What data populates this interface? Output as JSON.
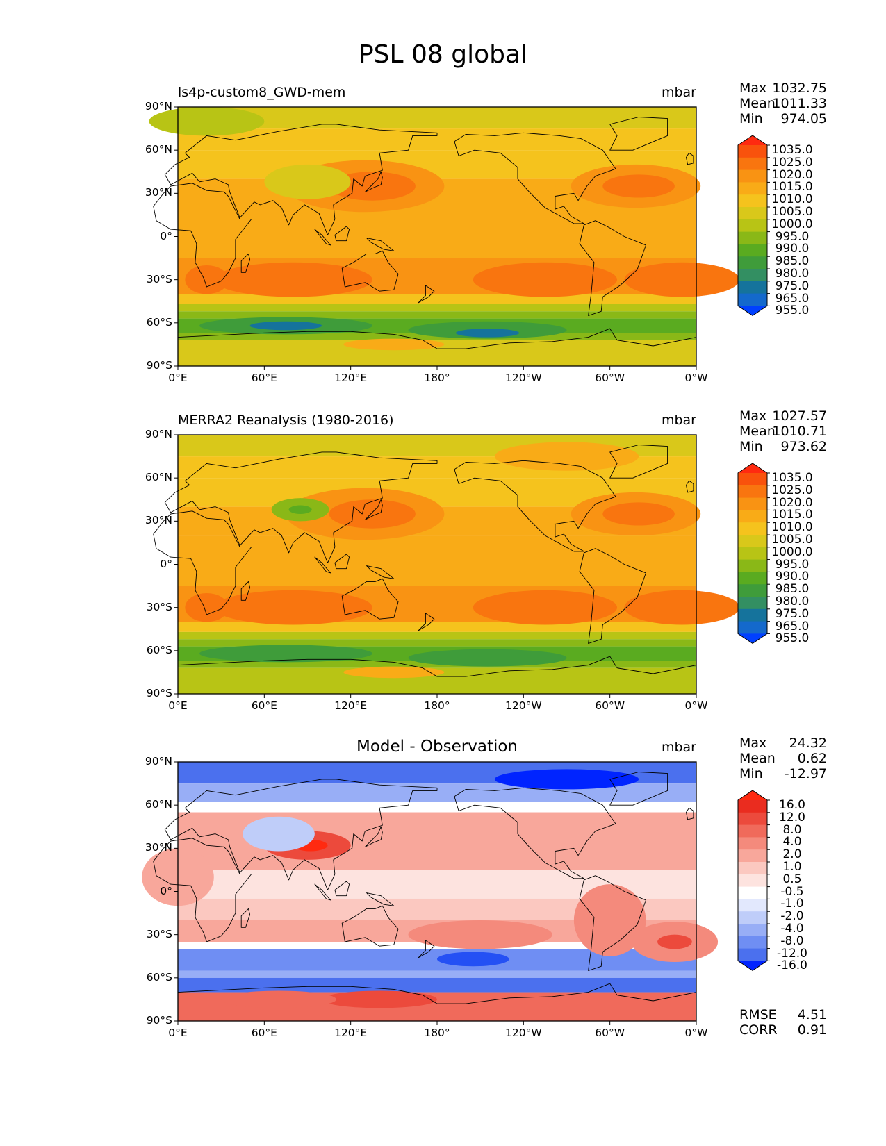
{
  "figure": {
    "title": "PSL 08 global"
  },
  "colors": {
    "abs_levels": [
      "#0040ff",
      "#1469cc",
      "#15739c",
      "#338f62",
      "#3f9c3a",
      "#5aab20",
      "#8ab817",
      "#b8c415",
      "#d9c81a",
      "#f5c31d",
      "#f9ab17",
      "#f99313",
      "#f9750f",
      "#f9520c",
      "#ff2a10"
    ],
    "diff_levels": [
      "#0024ff",
      "#2450f4",
      "#4b70ee",
      "#6f8ef3",
      "#98aef6",
      "#bfcdf9",
      "#e2e8fd",
      "#ffffff",
      "#fde3df",
      "#fbc8c0",
      "#f8a79b",
      "#f48a7c",
      "#f06a5b",
      "#ec4a3c",
      "#ea2c1f",
      "#ff2a10"
    ],
    "land_line": "#000000"
  },
  "panels": [
    {
      "id": "model",
      "title": "ls4p-custom8_GWD-mem",
      "units": "mbar",
      "stats": {
        "max_label": "Max",
        "max": "1032.75",
        "mean_label": "Mean",
        "mean": "1011.33",
        "min_label": "Min",
        "min": "974.05"
      }
    },
    {
      "id": "obs",
      "title": "MERRA2 Reanalysis (1980-2016)",
      "units": "mbar",
      "stats": {
        "max_label": "Max",
        "max": "1027.57",
        "mean_label": "Mean",
        "mean": "1010.71",
        "min_label": "Min",
        "min": "973.62"
      }
    },
    {
      "id": "diff",
      "title": "Model - Observation",
      "units": "mbar",
      "stats": {
        "max_label": "Max",
        "max": "24.32",
        "mean_label": "Mean",
        "mean": "0.62",
        "min_label": "Min",
        "min": "-12.97"
      },
      "extra": {
        "rmse_label": "RMSE",
        "rmse": "4.51",
        "corr_label": "CORR",
        "corr": "0.91"
      }
    }
  ],
  "chart_data": [
    {
      "type": "heatmap",
      "title": "ls4p-custom8_GWD-mem",
      "units": "mbar",
      "x_ticks": [
        "0°E",
        "60°E",
        "120°E",
        "180°",
        "120°W",
        "60°W",
        "0°W"
      ],
      "y_ticks": [
        "90°N",
        "60°N",
        "30°N",
        "0°",
        "30°S",
        "60°S",
        "90°S"
      ],
      "xlim": [
        0,
        360
      ],
      "ylim": [
        -90,
        90
      ],
      "colorbar_levels": [
        "1035.0",
        "1025.0",
        "1020.0",
        "1015.0",
        "1010.0",
        "1005.0",
        "1000.0",
        "995.0",
        "990.0",
        "985.0",
        "980.0",
        "975.0",
        "965.0",
        "955.0"
      ],
      "max": 1032.75,
      "mean": 1011.33,
      "min": 974.05
    },
    {
      "type": "heatmap",
      "title": "MERRA2 Reanalysis (1980-2016)",
      "units": "mbar",
      "x_ticks": [
        "0°E",
        "60°E",
        "120°E",
        "180°",
        "120°W",
        "60°W",
        "0°W"
      ],
      "y_ticks": [
        "90°N",
        "60°N",
        "30°N",
        "0°",
        "30°S",
        "60°S",
        "90°S"
      ],
      "xlim": [
        0,
        360
      ],
      "ylim": [
        -90,
        90
      ],
      "colorbar_levels": [
        "1035.0",
        "1025.0",
        "1020.0",
        "1015.0",
        "1010.0",
        "1005.0",
        "1000.0",
        "995.0",
        "990.0",
        "985.0",
        "980.0",
        "975.0",
        "965.0",
        "955.0"
      ],
      "max": 1027.57,
      "mean": 1010.71,
      "min": 973.62
    },
    {
      "type": "heatmap",
      "title": "Model - Observation",
      "units": "mbar",
      "x_ticks": [
        "0°E",
        "60°E",
        "120°E",
        "180°",
        "120°W",
        "60°W",
        "0°W"
      ],
      "y_ticks": [
        "90°N",
        "60°N",
        "30°N",
        "0°",
        "30°S",
        "60°S",
        "90°S"
      ],
      "xlim": [
        0,
        360
      ],
      "ylim": [
        -90,
        90
      ],
      "colorbar_levels": [
        "16.0",
        "12.0",
        "8.0",
        "4.0",
        "2.0",
        "1.0",
        "0.5",
        "-0.5",
        "-1.0",
        "-2.0",
        "-4.0",
        "-8.0",
        "-12.0",
        "-16.0"
      ],
      "max": 24.32,
      "mean": 0.62,
      "min": -12.97,
      "rmse": 4.51,
      "corr": 0.91
    }
  ]
}
